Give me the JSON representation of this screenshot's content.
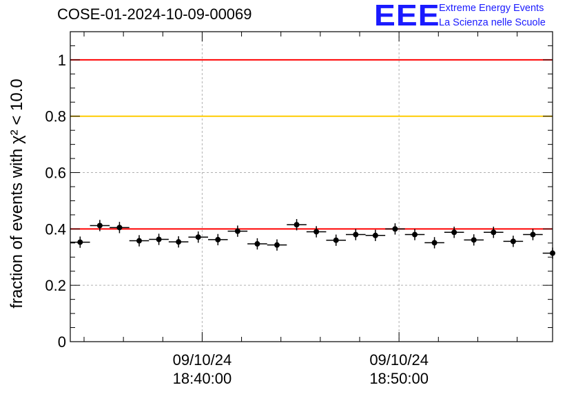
{
  "header": {
    "title": "COSE-01-2024-10-09-00069",
    "logo": {
      "mark": "EEE",
      "line1": "Extreme Energy Events",
      "line2": "La Scienza nelle Scuole",
      "color": "#1a1aff"
    }
  },
  "chart_data": {
    "type": "scatter",
    "title": "COSE-01-2024-10-09-00069",
    "ylabel": "fraction of events with χ² < 10.0",
    "xlabel": "",
    "ylim": [
      0,
      1.1
    ],
    "yticks": [
      "0",
      "0.2",
      "0.4",
      "0.6",
      "0.8",
      "1"
    ],
    "ytick_values": [
      0,
      0.2,
      0.4,
      0.6,
      0.8,
      1.0
    ],
    "xticks": [
      {
        "date": "09/10/24",
        "time": "18:40:00",
        "minutes": 40
      },
      {
        "date": "09/10/24",
        "time": "18:50:00",
        "minutes": 50
      }
    ],
    "xlim_minutes": [
      33.3,
      57.8
    ],
    "bin_width_minutes": 1,
    "grid": true,
    "reference_lines": [
      {
        "y": 1.0,
        "color": "#ff0000"
      },
      {
        "y": 0.8,
        "color": "#ffcc00"
      },
      {
        "y": 0.4,
        "color": "#ff0000"
      }
    ],
    "series": [
      {
        "x_minutes": [
          33.8,
          34.8,
          35.8,
          36.8,
          37.8,
          38.8,
          39.8,
          40.8,
          41.8,
          42.8,
          43.8,
          44.8,
          45.8,
          46.8,
          47.8,
          48.8,
          49.8,
          50.8,
          51.8,
          52.8,
          53.8,
          54.8,
          55.8,
          56.8,
          57.8
        ],
        "values": [
          0.353,
          0.412,
          0.405,
          0.358,
          0.363,
          0.354,
          0.371,
          0.362,
          0.392,
          0.347,
          0.343,
          0.415,
          0.39,
          0.36,
          0.38,
          0.377,
          0.4,
          0.38,
          0.351,
          0.388,
          0.361,
          0.388,
          0.356,
          0.38,
          0.314
        ],
        "errors": [
          0.02,
          0.02,
          0.02,
          0.02,
          0.02,
          0.02,
          0.02,
          0.02,
          0.02,
          0.02,
          0.02,
          0.02,
          0.02,
          0.02,
          0.02,
          0.02,
          0.02,
          0.02,
          0.02,
          0.02,
          0.02,
          0.02,
          0.02,
          0.02,
          0.02
        ],
        "color": "#000000"
      }
    ]
  }
}
